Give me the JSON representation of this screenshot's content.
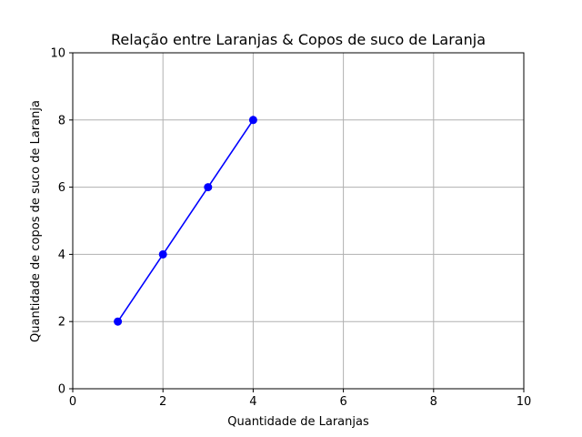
{
  "chart_data": {
    "type": "line",
    "title": "Relação entre Laranjas & Copos de suco de Laranja",
    "xlabel": "Quantidade de Laranjas",
    "ylabel": "Quantidade de copos de suco de Laranja",
    "xlim": [
      0,
      10
    ],
    "ylim": [
      0,
      10
    ],
    "xticks": [
      "0",
      "2",
      "4",
      "6",
      "8",
      "10"
    ],
    "yticks": [
      "0",
      "2",
      "4",
      "6",
      "8",
      "10"
    ],
    "grid": true,
    "series": [
      {
        "x": [
          1,
          2,
          3,
          4
        ],
        "y": [
          2,
          4,
          6,
          8
        ],
        "color": "#0000ff",
        "marker": "circle"
      }
    ]
  }
}
